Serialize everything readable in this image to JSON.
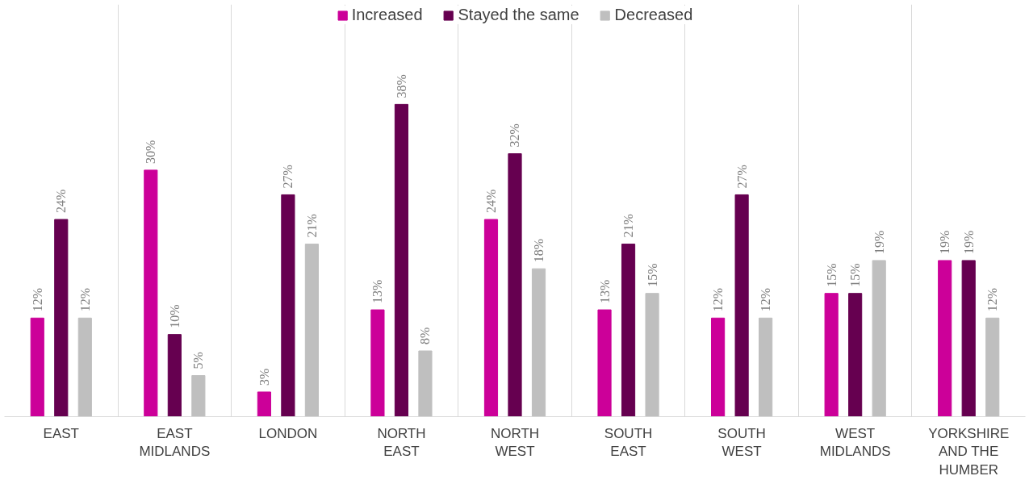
{
  "chart_data": {
    "type": "bar",
    "categories": [
      "EAST",
      "EAST MIDLANDS",
      "LONDON",
      "NORTH EAST",
      "NORTH WEST",
      "SOUTH EAST",
      "SOUTH WEST",
      "WEST MIDLANDS",
      "YORKSHIRE AND THE HUMBER"
    ],
    "series": [
      {
        "name": "Increased",
        "color": "#cc0099",
        "values": [
          12,
          30,
          3,
          13,
          24,
          13,
          12,
          15,
          19
        ],
        "value_labels": [
          "12%",
          "30%",
          "3%",
          "13%",
          "24%",
          "13%",
          "12%",
          "15%",
          "19%"
        ]
      },
      {
        "name": "Stayed the same",
        "color": "#660050",
        "values": [
          24,
          10,
          27,
          38,
          32,
          21,
          27,
          15,
          19
        ],
        "value_labels": [
          "24%",
          "10%",
          "27%",
          "38%",
          "32%",
          "21%",
          "27%",
          "15%",
          "19%"
        ]
      },
      {
        "name": "Decreased",
        "color": "#bfbfbf",
        "values": [
          12,
          5,
          21,
          8,
          18,
          15,
          12,
          19,
          12
        ],
        "value_labels": [
          "12%",
          "5%",
          "21%",
          "8%",
          "18%",
          "15%",
          "12%",
          "19%",
          "12%"
        ]
      }
    ],
    "legend": "top"
  }
}
